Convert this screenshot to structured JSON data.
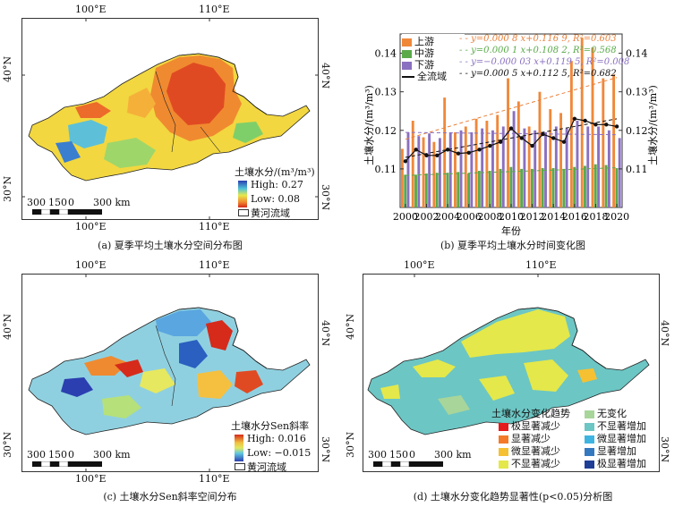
{
  "panel_a": {
    "caption": "(a) 夏季平均土壤水分空间分布图",
    "top_ticks": [
      "100°E",
      "110°E"
    ],
    "bottom_ticks": [
      "100°E",
      "110°E"
    ],
    "left_ticks": [
      "40°N",
      "30°N"
    ],
    "right_ticks": [
      "40°N",
      "30°N"
    ],
    "legend_title": "土壤水分/(m³/m³)",
    "legend_high": "High: 0.27",
    "legend_low": "Low: 0.08",
    "basin_label": "黄河流域",
    "scale_labels": [
      "300",
      "150",
      "0",
      "300 km"
    ]
  },
  "panel_b": {
    "caption": "(b) 夏季平均土壤水分时间变化图",
    "xlabel": "年份",
    "ylabel_left": "土壤水分/(m³/m³)",
    "ylabel_right": "土壤水分/(m³/m³)",
    "legend": [
      {
        "name": "上游",
        "color": "#f0883a"
      },
      {
        "name": "中游",
        "color": "#5aaa4a"
      },
      {
        "name": "下游",
        "color": "#8a70c0"
      },
      {
        "name": "全流域",
        "color": "#111111"
      }
    ],
    "fits": [
      {
        "text": "y=0.000 8 x+0.116 9, R²=0.603",
        "color": "#e8803a"
      },
      {
        "text": "y=0.000 1 x+0.108 2, R²=0.568",
        "color": "#5aaa4a"
      },
      {
        "text": "y=−0.000 03 x+0.119 5, R²=0.008",
        "color": "#8a70c0"
      },
      {
        "text": "y=0.000 5 x+0.112 5, R²=0.682",
        "color": "#111111"
      }
    ]
  },
  "chart_data": {
    "type": "bar",
    "title": "夏季平均土壤水分时间变化图",
    "xlabel": "年份",
    "ylabel": "土壤水分/(m³/m³)",
    "ylim": [
      0.1,
      0.145
    ],
    "categories": [
      "2000",
      "2001",
      "2002",
      "2003",
      "2004",
      "2005",
      "2006",
      "2007",
      "2008",
      "2009",
      "2010",
      "2011",
      "2012",
      "2013",
      "2014",
      "2015",
      "2016",
      "2017",
      "2018",
      "2019",
      "2020"
    ],
    "xticks": [
      "2000",
      "2002",
      "2004",
      "2006",
      "2008",
      "2010",
      "2012",
      "2014",
      "2016",
      "2018",
      "2020"
    ],
    "yticks": [
      "0.11",
      "0.12",
      "0.13",
      "0.14"
    ],
    "series": [
      {
        "name": "上游",
        "type": "bar",
        "color": "#f0883a",
        "values": [
          0.1152,
          0.1225,
          0.1182,
          0.117,
          0.1285,
          0.1195,
          0.121,
          0.123,
          0.1225,
          0.124,
          0.1335,
          0.1275,
          0.121,
          0.13,
          0.1255,
          0.1245,
          0.138,
          0.144,
          0.1415,
          0.1335,
          0.1345
        ]
      },
      {
        "name": "中游",
        "type": "bar",
        "color": "#5aaa4a",
        "values": [
          0.1085,
          0.1085,
          0.1088,
          0.109,
          0.109,
          0.1092,
          0.1088,
          0.1095,
          0.1095,
          0.11,
          0.1105,
          0.11,
          0.11,
          0.1102,
          0.1102,
          0.11,
          0.1105,
          0.1108,
          0.1112,
          0.111,
          0.1102
        ]
      },
      {
        "name": "下游",
        "type": "bar",
        "color": "#8a70c0",
        "values": [
          0.1195,
          0.1185,
          0.1192,
          0.118,
          0.1195,
          0.12,
          0.1195,
          0.1205,
          0.12,
          0.121,
          0.125,
          0.1205,
          0.12,
          0.1195,
          0.121,
          0.1205,
          0.1225,
          0.121,
          0.121,
          0.12,
          0.118
        ]
      },
      {
        "name": "全流域",
        "type": "line",
        "color": "#111111",
        "values": [
          0.112,
          0.115,
          0.1135,
          0.1135,
          0.115,
          0.114,
          0.1142,
          0.115,
          0.116,
          0.117,
          0.1205,
          0.118,
          0.116,
          0.119,
          0.118,
          0.117,
          0.123,
          0.1225,
          0.1215,
          0.1215,
          0.121
        ]
      }
    ],
    "fit_lines": [
      {
        "series": "上游",
        "slope": 0.0008,
        "intercept": 0.1169,
        "r2": 0.603
      },
      {
        "series": "中游",
        "slope": 0.0001,
        "intercept": 0.1082,
        "r2": 0.568
      },
      {
        "series": "下游",
        "slope": -3e-05,
        "intercept": 0.1195,
        "r2": 0.008
      },
      {
        "series": "全流域",
        "slope": 0.0005,
        "intercept": 0.1125,
        "r2": 0.682
      }
    ]
  },
  "panel_c": {
    "caption": "(c) 土壤水分Sen斜率空间分布",
    "top_ticks": [
      "100°E",
      "110°E"
    ],
    "bottom_ticks": [
      "100°E",
      "110°E"
    ],
    "left_ticks": [
      "40°N",
      "30°N"
    ],
    "right_ticks": [
      "40°N",
      "30°N"
    ],
    "legend_title": "土壤水分Sen斜率",
    "legend_high": "High: 0.016",
    "legend_low": "Low: −0.015",
    "basin_label": "黄河流域",
    "scale_labels": [
      "300",
      "150",
      "0",
      "300 km"
    ]
  },
  "panel_d": {
    "caption": "(d) 土壤水分变化趋势显著性(p<0.05)分析图",
    "top_ticks": [
      "100°E",
      "110°E"
    ],
    "left_ticks": [
      "40°N",
      "30°N"
    ],
    "right_ticks": [
      "40°N",
      "30°N"
    ],
    "legend_title": "土壤水分变化趋势",
    "classes_left": [
      {
        "label": "极显著减少",
        "color": "#e41a1c"
      },
      {
        "label": "显著减少",
        "color": "#f47a2a"
      },
      {
        "label": "微显著减少",
        "color": "#f5c132"
      },
      {
        "label": "不显著减少",
        "color": "#e4e84a"
      }
    ],
    "classes_right": [
      {
        "label": "无变化",
        "color": "#a8d59a"
      },
      {
        "label": "不显著增加",
        "color": "#6cc6c4"
      },
      {
        "label": "微显著增加",
        "color": "#3fb4e0"
      },
      {
        "label": "显著增加",
        "color": "#3478c0"
      },
      {
        "label": "极显著增加",
        "color": "#1f3e96"
      }
    ],
    "scale_labels": [
      "300",
      "150",
      "0",
      "300 km"
    ]
  }
}
